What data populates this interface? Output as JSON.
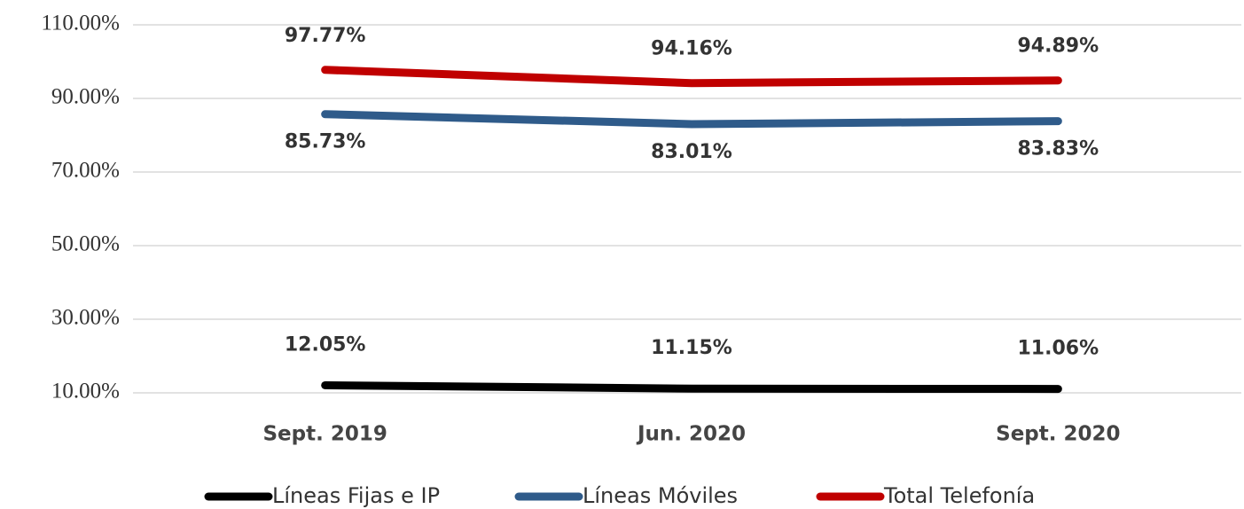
{
  "chart_data": {
    "type": "line",
    "categories": [
      "Sept. 2019",
      "Jun. 2020",
      "Sept. 2020"
    ],
    "series": [
      {
        "name": "Líneas Fijas e IP",
        "color": "#000000",
        "values": [
          12.05,
          11.15,
          11.06
        ],
        "value_labels": [
          "12.05%",
          "11.15%",
          "11.06%"
        ]
      },
      {
        "name": "Líneas Móviles",
        "color": "#2f5b8a",
        "values": [
          85.73,
          83.01,
          83.83
        ],
        "value_labels": [
          "85.73%",
          "83.01%",
          "83.83%"
        ]
      },
      {
        "name": "Total Telefonía",
        "color": "#c00000",
        "values": [
          97.77,
          94.16,
          94.89
        ],
        "value_labels": [
          "97.77%",
          "94.16%",
          "94.89%"
        ]
      }
    ],
    "ylim": [
      10,
      110
    ],
    "yticks": [
      {
        "value": 10,
        "label": "10.00%"
      },
      {
        "value": 30,
        "label": "30.00%"
      },
      {
        "value": 50,
        "label": "50.00%"
      },
      {
        "value": 70,
        "label": "70.00%"
      },
      {
        "value": 90,
        "label": "90.00%"
      },
      {
        "value": 110,
        "label": "110.00%"
      }
    ],
    "grid": true,
    "legend": "bottom"
  }
}
